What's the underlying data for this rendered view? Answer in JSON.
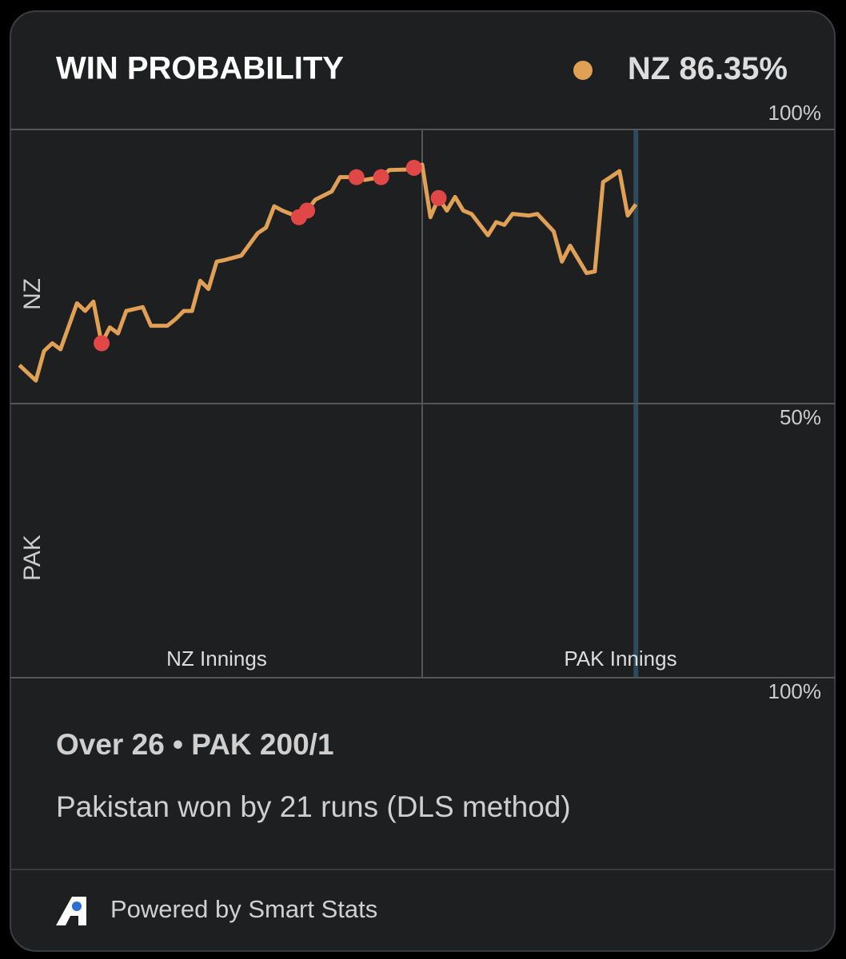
{
  "chart_data": {
    "type": "line",
    "title": "WIN PROBABILITY",
    "current": {
      "team": "NZ",
      "value": 86.35,
      "value_label": "86.35%",
      "color": "#e0a055"
    },
    "y_labels": [
      "NZ",
      "PAK"
    ],
    "innings_labels": [
      "NZ Innings",
      "PAK Innings"
    ],
    "xlim": [
      0,
      100
    ],
    "ylim": [
      0,
      100
    ],
    "yticks": [
      {
        "value": 100,
        "label": "100%"
      },
      {
        "value": 50,
        "label": "50%"
      },
      {
        "value": 0,
        "label": "100%"
      }
    ],
    "innings_break": 50,
    "current_x": 76,
    "series": [
      {
        "name": "NZ",
        "color": "#e0a055",
        "x": [
          1,
          3,
          4,
          5,
          6,
          8,
          9,
          10,
          11,
          12,
          13,
          14,
          16,
          17,
          19,
          20,
          21,
          22,
          23,
          24,
          25,
          26,
          28,
          30,
          31,
          32,
          33,
          35,
          36,
          37,
          39,
          40,
          42,
          43,
          45,
          46,
          48,
          49,
          50,
          51,
          52,
          53,
          54,
          55,
          56,
          58,
          59,
          60,
          61,
          63,
          64,
          66,
          67,
          68,
          70,
          71,
          72,
          74,
          75,
          76
        ],
        "values": [
          57.0,
          54.2,
          59.6,
          61.0,
          59.9,
          68.3,
          66.9,
          68.6,
          61.0,
          63.9,
          62.8,
          66.9,
          67.6,
          64.2,
          64.2,
          65.4,
          66.9,
          66.9,
          72.4,
          70.9,
          75.9,
          76.2,
          77.0,
          81.1,
          82.1,
          86.0,
          85.2,
          84.0,
          85.2,
          87.2,
          88.7,
          91.3,
          91.3,
          90.8,
          91.3,
          92.6,
          92.7,
          93.0,
          93.6,
          84.0,
          87.5,
          85.2,
          87.7,
          85.2,
          84.6,
          80.7,
          83.1,
          82.6,
          84.6,
          84.3,
          84.6,
          81.4,
          75.9,
          78.8,
          73.8,
          74.1,
          90.4,
          92.4,
          84.3,
          86.35
        ]
      }
    ],
    "wickets": {
      "color": "#e04848",
      "x": [
        11,
        35,
        36,
        42,
        45,
        49,
        52
      ],
      "values": [
        61.0,
        84.0,
        85.2,
        91.3,
        91.3,
        93.0,
        87.5
      ]
    },
    "status": "Over 26 • PAK 200/1",
    "result": "Pakistan won by 21 runs (DLS method)",
    "footer": "Powered by Smart Stats"
  }
}
